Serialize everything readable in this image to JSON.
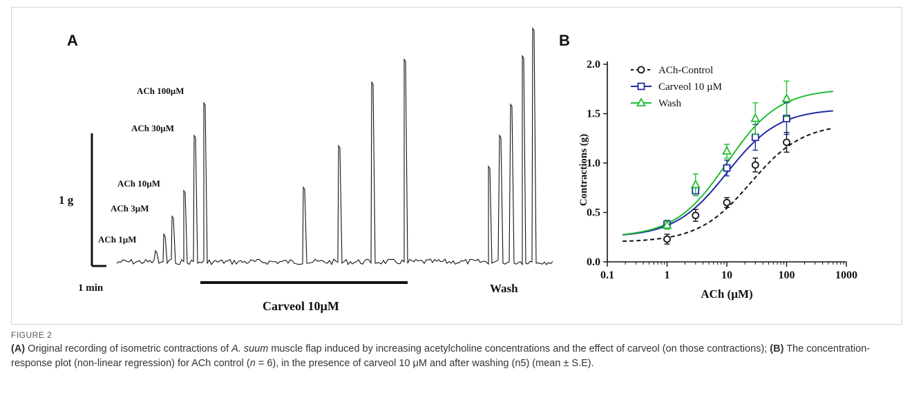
{
  "panel_a": {
    "label": "A",
    "dose_labels": [
      "ACh 1µM",
      "ACh 3µM",
      "ACh 10µM",
      "ACh 30µM",
      "ACh 100µM"
    ],
    "scale_y_label": "1 g",
    "scale_x_label": "1 min",
    "treatment_label": "Carveol 10µM",
    "wash_label": "Wash"
  },
  "panel_b": {
    "label": "B"
  },
  "chart_data": {
    "type": "scatter",
    "xlabel": "ACh (µM)",
    "ylabel": "Contractions (g)",
    "x_scale": "log",
    "xlim": [
      0.1,
      1000
    ],
    "ylim": [
      0.0,
      2.0
    ],
    "x_ticks": [
      "0.1",
      "1",
      "10",
      "100",
      "1000"
    ],
    "y_ticks": [
      "0.0",
      "0.5",
      "1.0",
      "1.5",
      "2.0"
    ],
    "legend_position": "top-left",
    "x": [
      1,
      3,
      10,
      30,
      100
    ],
    "series": [
      {
        "name": "ACh-Control",
        "color": "#111111",
        "marker": "circle",
        "line": "dashed",
        "values": [
          0.23,
          0.47,
          0.6,
          0.98,
          1.21
        ],
        "errors": [
          0.05,
          0.06,
          0.05,
          0.07,
          0.1
        ],
        "fit_bottom": 0.2,
        "fit_top": 1.4,
        "fit_ec50": 25
      },
      {
        "name": "Carveol 10 µM",
        "color": "#1f2a9e",
        "marker": "square",
        "line": "solid",
        "values": [
          0.38,
          0.72,
          0.95,
          1.26,
          1.45
        ],
        "errors": [
          0.04,
          0.05,
          0.08,
          0.13,
          0.16
        ],
        "fit_bottom": 0.25,
        "fit_top": 1.55,
        "fit_ec50": 10
      },
      {
        "name": "Wash",
        "color": "#22bb33",
        "marker": "triangle",
        "line": "solid",
        "values": [
          0.37,
          0.78,
          1.12,
          1.45,
          1.65
        ],
        "errors": [
          0.04,
          0.11,
          0.07,
          0.16,
          0.18
        ],
        "fit_bottom": 0.25,
        "fit_top": 1.75,
        "fit_ec50": 10
      }
    ]
  },
  "caption": {
    "figure_label": "FIGURE 2",
    "part_a_tag": "(A)",
    "part_a_text_1": " Original recording of isometric contractions of ",
    "part_a_species": "A. suum",
    "part_a_text_2": " muscle flap induced by increasing acetylcholine concentrations and the effect of carveol (on those contractions); ",
    "part_b_tag": "(B)",
    "part_b_text_1": " The concentration-response plot (non-linear regression) for ACh control (",
    "part_b_n": "n",
    "part_b_text_2": " = 6), in the presence of carveol 10 μM and after washing (n5) (mean ± S.E)."
  }
}
